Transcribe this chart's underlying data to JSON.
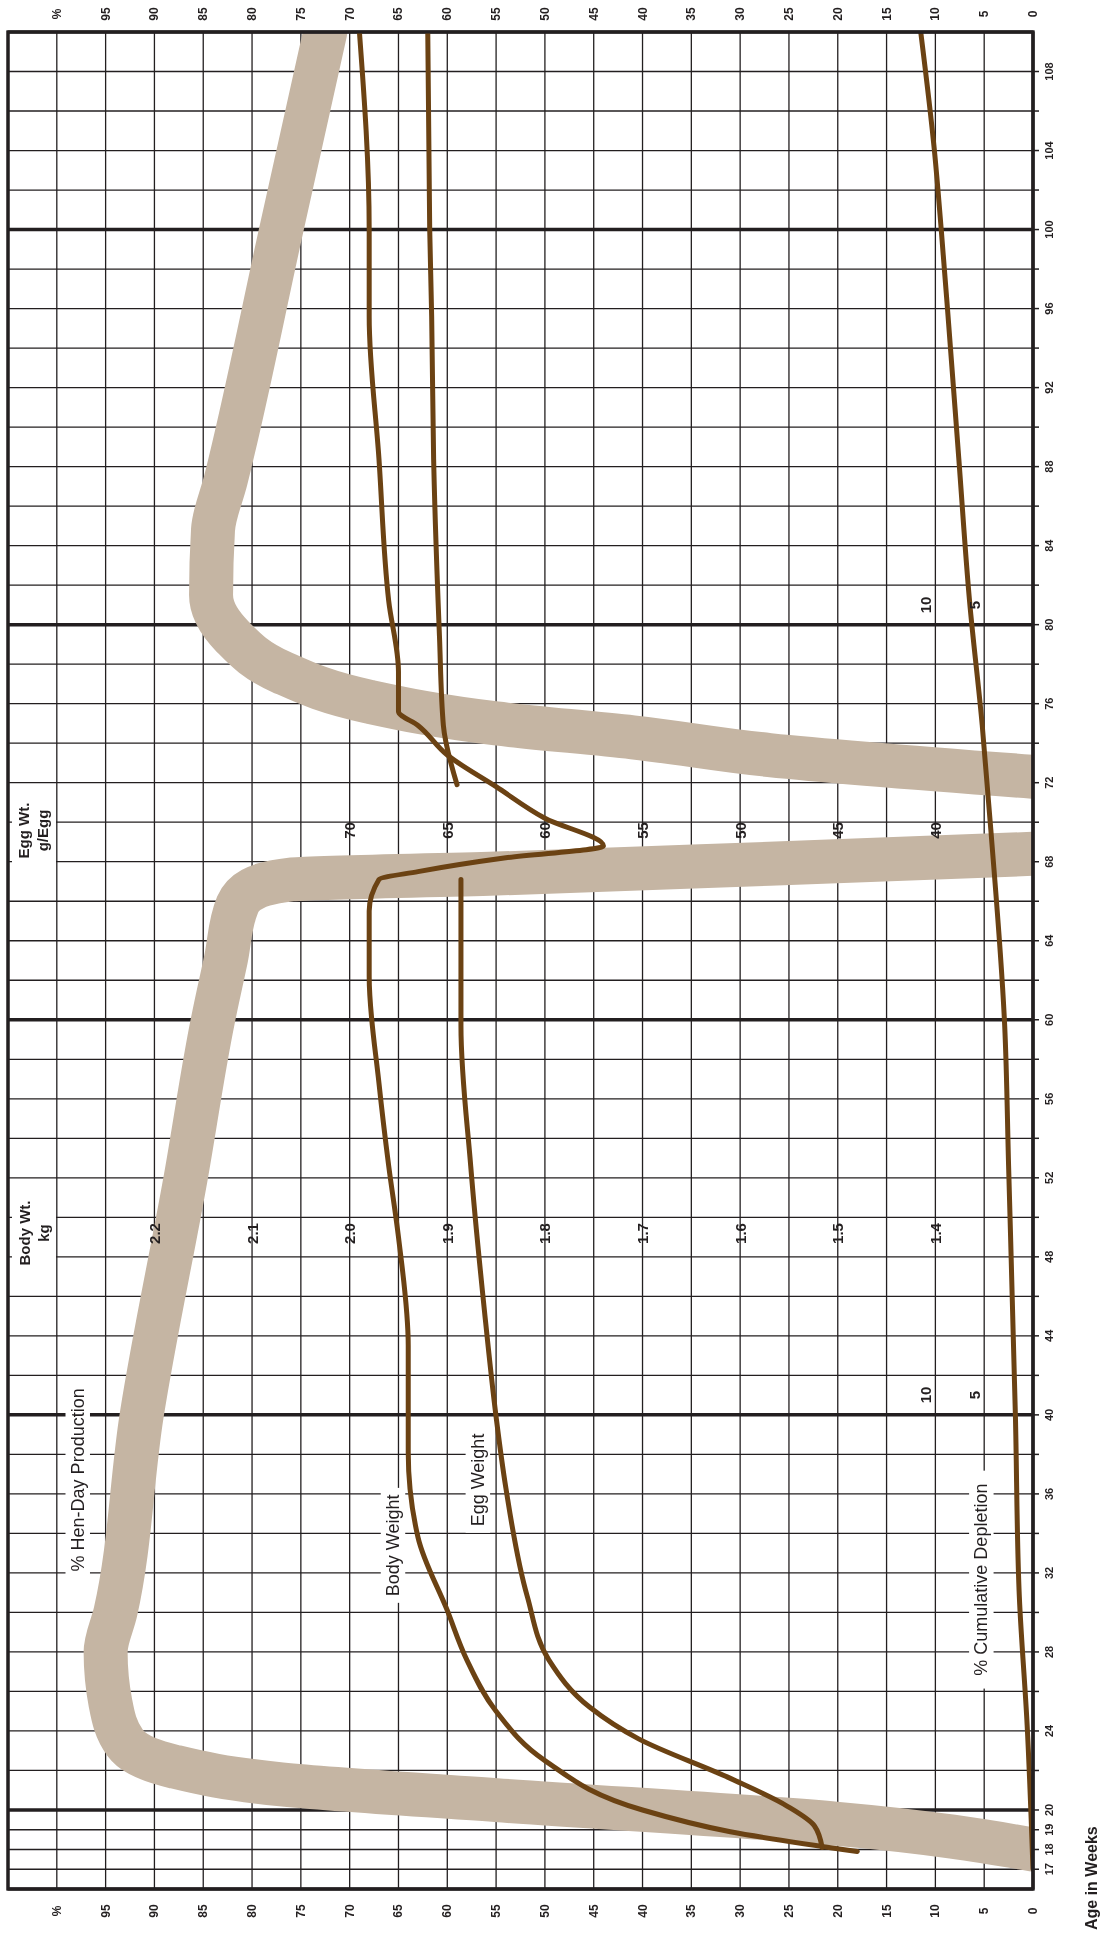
{
  "chart_data": [
    {
      "type": "line",
      "ylabel": "Age in Weeks",
      "ylim": [
        16,
        110
      ],
      "yticks": [
        17,
        18,
        19,
        20,
        {
          "value": 22,
          "label": null
        },
        24,
        {
          "value": 26,
          "label": null
        },
        28,
        {
          "value": 30,
          "label": null
        },
        32,
        {
          "value": 34,
          "label": null
        },
        36,
        {
          "value": 38,
          "label": null
        },
        40,
        {
          "value": 42,
          "label": null
        },
        44,
        {
          "value": 46,
          "label": null
        },
        48,
        {
          "value": 50,
          "label": null
        },
        52,
        {
          "value": 54,
          "label": null
        },
        56,
        {
          "value": 58,
          "label": null
        },
        60,
        {
          "value": 62,
          "label": null
        },
        64,
        {
          "value": 66,
          "label": null
        },
        68,
        {
          "value": 70,
          "label": null
        },
        72,
        {
          "value": 74,
          "label": null
        },
        76,
        {
          "value": 78,
          "label": null
        },
        80,
        {
          "value": 82,
          "label": null
        },
        84,
        {
          "value": 86,
          "label": null
        },
        88,
        {
          "value": 90,
          "label": null
        },
        92,
        {
          "value": 94,
          "label": null
        },
        96,
        {
          "value": 98,
          "label": null
        },
        100,
        {
          "value": 102,
          "label": null
        },
        104,
        {
          "value": 106,
          "label": null
        },
        108
      ],
      "xlim": [
        105,
        0
      ],
      "xticks": [
        0,
        5,
        10,
        15,
        20,
        25,
        30,
        35,
        40,
        45,
        50,
        55,
        60,
        65,
        70,
        75,
        80,
        85,
        90,
        95,
        {
          "value": 100,
          "label": "%"
        }
      ],
      "x2lim": [
        105,
        0
      ],
      "x2ticks": [
        0,
        5,
        10,
        15,
        20,
        25,
        30,
        35,
        40,
        45,
        50,
        55,
        60,
        65,
        70,
        75,
        80,
        85,
        90,
        95,
        {
          "value": 100,
          "label": "%"
        }
      ],
      "grid": true,
      "annotations": [
        "10",
        "5",
        "10",
        "5"
      ],
      "series": [
        {
          "name": "% Hen-Day Production",
          "color": "#c5b5a3",
          "values": [
            18,
            19.3,
            20.5,
            21.3,
            22.2,
            23.4,
            25.4,
            28,
            30,
            40,
            52,
            60,
            63,
            65.8,
            66.6,
            67.1,
            67.4,
            67.9,
            68.4,
            null,
            72.3,
            73.4,
            74.3,
            75,
            76.1,
            77.6,
            79.4,
            81.5,
            84.8,
            87.3,
            100,
            110
          ],
          "x": [
            0,
            20,
            55,
            77,
            88,
            93,
            94.5,
            95,
            94,
            91.3,
            86.8,
            84,
            82.7,
            81.5,
            80,
            76,
            55,
            27,
            0,
            null,
            0,
            27,
            41,
            55,
            68,
            77,
            82,
            84.2,
            84,
            82.7,
            77,
            72.5
          ]
        },
        {
          "name": "% Cumulative Depletion",
          "color": "#6b4213",
          "values": [
            17,
            24.3,
            30.8,
            39.9,
            52.6,
            59.7,
            69.5,
            74.9,
            81.2,
            88.4,
            95.6,
            100,
            104,
            110
          ],
          "x": [
            0,
            0.6,
            1.4,
            1.8,
            2.5,
            2.9,
            4.3,
            5.2,
            6.5,
            7.6,
            8.7,
            9.4,
            10.1,
            11.5
          ]
        }
      ]
    },
    {
      "type": "line",
      "tick_labels": "x",
      "ylim": [
        16,
        110
      ],
      "annotations": [
        "Body Wt.\nkg"
      ],
      "xlim": [
        2.35,
        1.3
      ],
      "xticks": [
        1.4,
        1.5,
        1.6,
        1.7,
        1.8,
        1.9,
        {
          "value": 2,
          "label": "2.0"
        },
        2.1,
        2.2
      ],
      "x2label": "Egg Wt.\ng/Egg",
      "x2lim": [
        87.5,
        35
      ],
      "x2ticks": [
        40,
        45,
        50,
        55,
        60,
        65,
        70
      ],
      "series": [
        {
          "name": "Body Weight",
          "color": "#6b4213",
          "values": [
            17.9,
            18.9,
            20,
            22.5,
            25,
            27.6,
            30.1,
            33.8,
            38.1,
            43.5,
            49,
            52.6,
            56.8,
            62.2,
            65.5,
            67.1,
            67.5,
            68.2,
            68.8,
            70.2,
            71.8,
            73.4,
            74.9,
            75.6,
            77.6,
            81.2,
            88.4,
            95.6,
            100,
            110
          ],
          "x": [
            1.48,
            1.61,
            1.7,
            1.8,
            1.85,
            1.88,
            1.9,
            1.93,
            1.94,
            1.94,
            1.95,
            1.96,
            1.97,
            1.98,
            1.98,
            1.97,
            1.93,
            1.84,
            1.74,
            1.8,
            1.85,
            1.9,
            1.93,
            1.95,
            1.95,
            1.96,
            1.97,
            1.98,
            1.98,
            1.99
          ]
        },
        {
          "name": "Egg Weight",
          "color": "#6b4213",
          "axis": "x2",
          "values": [
            18.1,
            19.2,
            20.2,
            21.6,
            23.6,
            25.2,
            27.6,
            30.8,
            36.3,
            39.9,
            45.3,
            52.6,
            59.7,
            67.1,
            null,
            71.9,
            74.9,
            79.4,
            88.4,
            95.6,
            100,
            110
          ],
          "x": [
            45.8,
            46.2,
            47.6,
            50.5,
            55.2,
            57.7,
            59.8,
            60.9,
            62,
            62.5,
            63.1,
            63.8,
            64.3,
            64.3,
            null,
            64.5,
            65.2,
            65.4,
            65.7,
            65.8,
            65.9,
            66
          ]
        }
      ]
    }
  ]
}
